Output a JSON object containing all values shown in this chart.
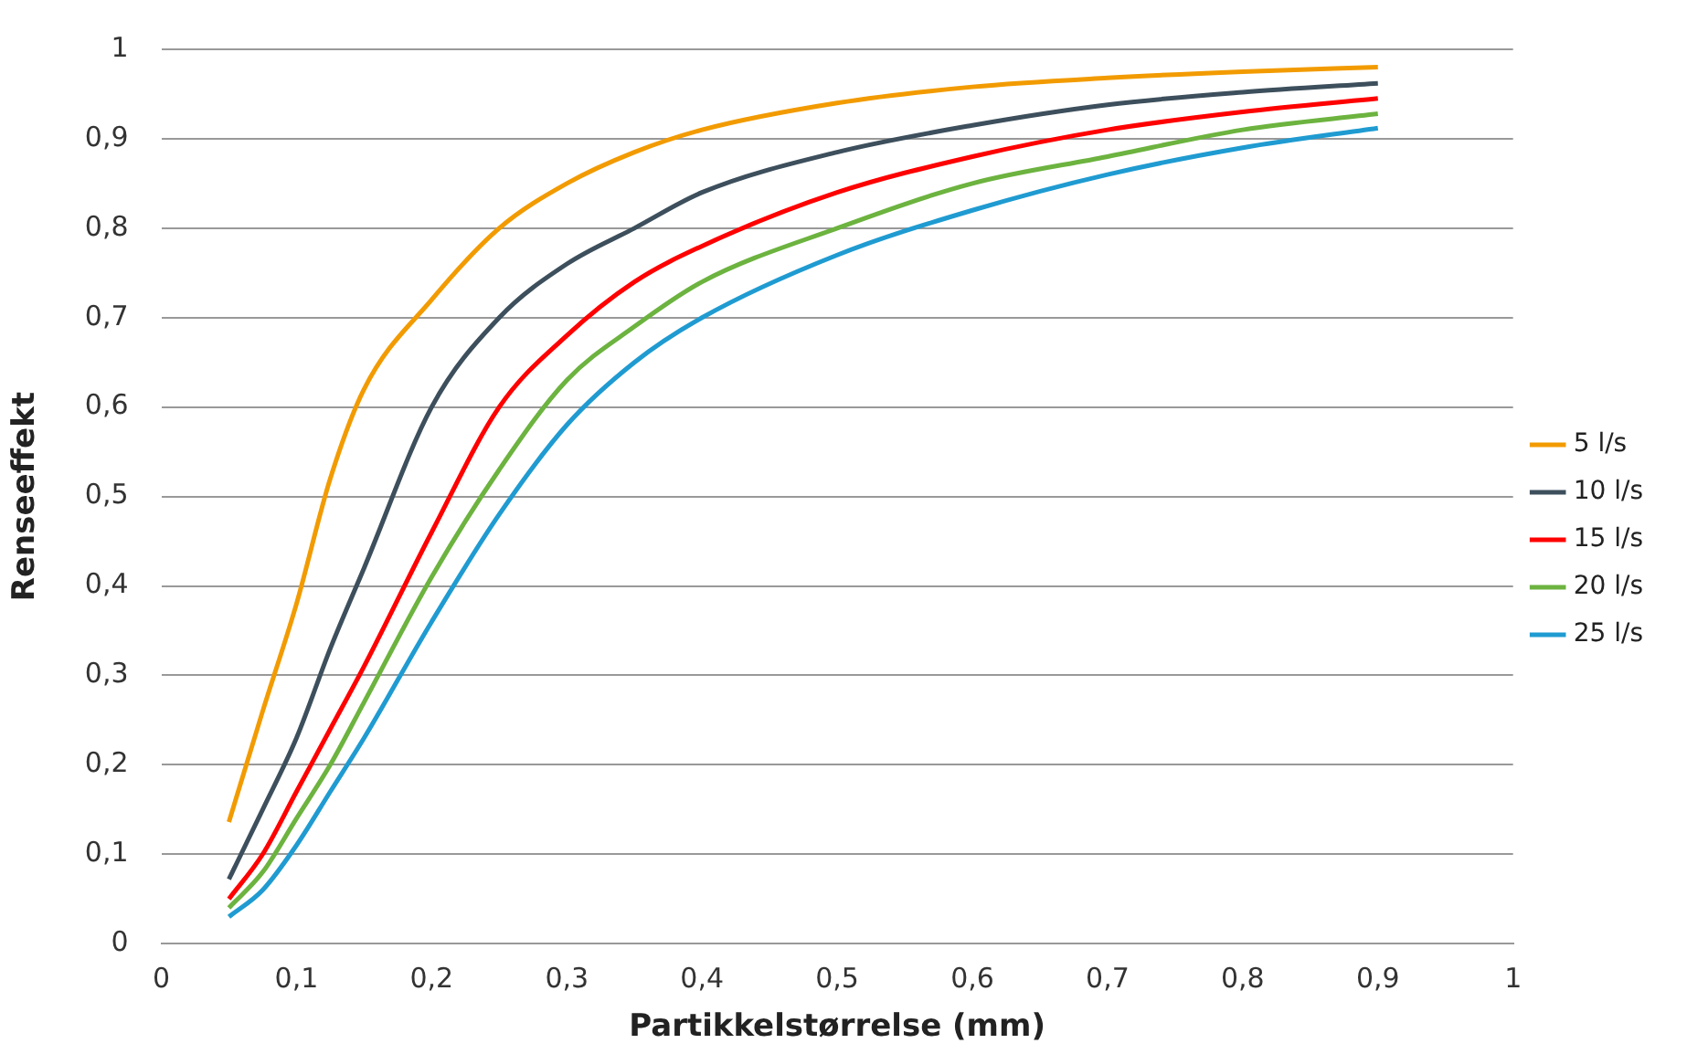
{
  "chart_data": {
    "type": "line",
    "xlabel": "Partikkelstørrelse (mm)",
    "ylabel": "Renseeffekt",
    "x": [
      0.05,
      0.075,
      0.1,
      0.125,
      0.15,
      0.2,
      0.25,
      0.3,
      0.35,
      0.4,
      0.5,
      0.6,
      0.7,
      0.8,
      0.9
    ],
    "series": [
      {
        "name": "5 l/s",
        "color": "#f29b00",
        "values": [
          0.136,
          0.26,
          0.38,
          0.52,
          0.62,
          0.72,
          0.8,
          0.85,
          0.885,
          0.91,
          0.94,
          0.958,
          0.968,
          0.975,
          0.98
        ]
      },
      {
        "name": "10 l/s",
        "color": "#3d4f5c",
        "values": [
          0.072,
          0.15,
          0.23,
          0.33,
          0.42,
          0.6,
          0.7,
          0.76,
          0.8,
          0.84,
          0.885,
          0.915,
          0.938,
          0.952,
          0.962
        ]
      },
      {
        "name": "15 l/s",
        "color": "#ff0000",
        "values": [
          0.05,
          0.1,
          0.17,
          0.24,
          0.31,
          0.46,
          0.6,
          0.68,
          0.74,
          0.78,
          0.84,
          0.88,
          0.91,
          0.93,
          0.945
        ]
      },
      {
        "name": "20 l/s",
        "color": "#6cb33f",
        "values": [
          0.04,
          0.08,
          0.14,
          0.2,
          0.27,
          0.41,
          0.53,
          0.63,
          0.69,
          0.74,
          0.8,
          0.85,
          0.88,
          0.91,
          0.928
        ]
      },
      {
        "name": "25 l/s",
        "color": "#1f9bd1",
        "values": [
          0.03,
          0.06,
          0.11,
          0.17,
          0.23,
          0.36,
          0.48,
          0.58,
          0.65,
          0.7,
          0.77,
          0.82,
          0.86,
          0.89,
          0.912
        ]
      }
    ],
    "xlim": [
      0,
      1
    ],
    "ylim": [
      0,
      1
    ],
    "xticks": [
      0,
      {
        "value": 0.1,
        "label": "0,1"
      },
      {
        "value": 0.2,
        "label": "0,2"
      },
      {
        "value": 0.3,
        "label": "0,3"
      },
      {
        "value": 0.4,
        "label": "0,4"
      },
      {
        "value": 0.5,
        "label": "0,5"
      },
      {
        "value": 0.6,
        "label": "0,6"
      },
      {
        "value": 0.7,
        "label": "0,7"
      },
      {
        "value": 0.8,
        "label": "0,8"
      },
      {
        "value": 0.9,
        "label": "0,9"
      },
      1
    ],
    "yticks": [
      0,
      {
        "value": 0.1,
        "label": "0,1"
      },
      {
        "value": 0.2,
        "label": "0,2"
      },
      {
        "value": 0.3,
        "label": "0,3"
      },
      {
        "value": 0.4,
        "label": "0,4"
      },
      {
        "value": 0.5,
        "label": "0,5"
      },
      {
        "value": 0.6,
        "label": "0,6"
      },
      {
        "value": 0.7,
        "label": "0,7"
      },
      {
        "value": 0.8,
        "label": "0,8"
      },
      {
        "value": 0.9,
        "label": "0,9"
      },
      1
    ],
    "grid": "y",
    "legend": "right",
    "marker": "none",
    "line_style": "solid"
  }
}
